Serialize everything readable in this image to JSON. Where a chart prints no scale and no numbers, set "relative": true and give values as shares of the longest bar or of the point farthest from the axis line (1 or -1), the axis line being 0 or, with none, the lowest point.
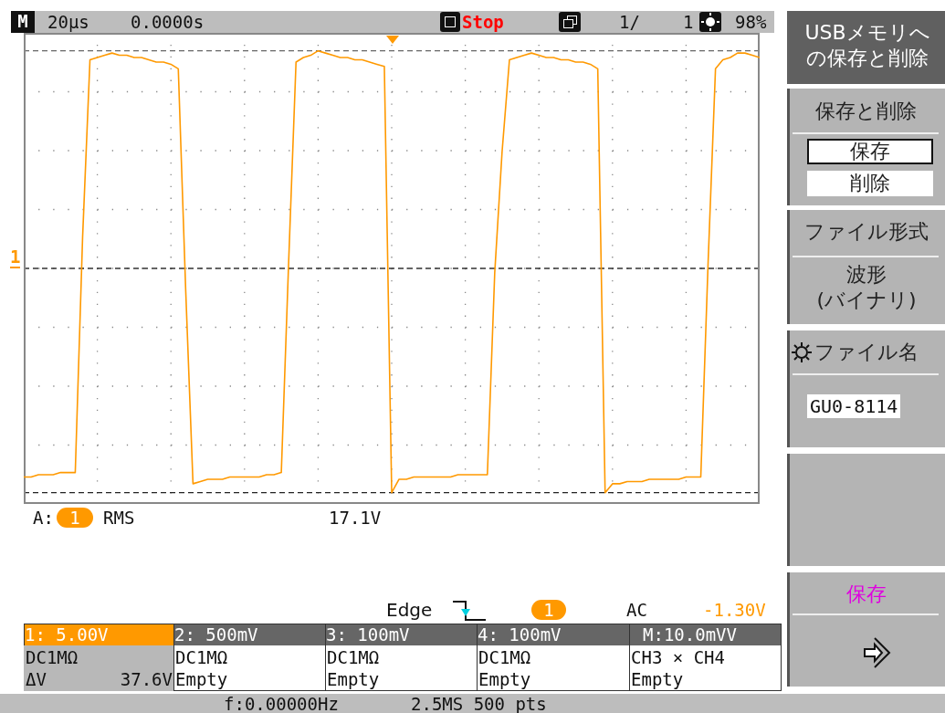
{
  "chart_data": {
    "type": "line",
    "relative": true,
    "grid": true,
    "legend": false,
    "marker": "none",
    "line_style": "solid",
    "categories": [
      null,
      null,
      null,
      null,
      null,
      null,
      null,
      null,
      null,
      null,
      null,
      null,
      null,
      null,
      null,
      null,
      null,
      null,
      null,
      null,
      null,
      null,
      null,
      null,
      null,
      null,
      null,
      null,
      null,
      null,
      null,
      null,
      null,
      null,
      null,
      null,
      null,
      null,
      null,
      null,
      null,
      null,
      null,
      null,
      null,
      null,
      null,
      null,
      null,
      null,
      null,
      null,
      null,
      null,
      null,
      null,
      null,
      null,
      null,
      null,
      null,
      null,
      null,
      null,
      null,
      null,
      null,
      null,
      null,
      null,
      null,
      null,
      null,
      null,
      null,
      null,
      null,
      null,
      null,
      null,
      null,
      null,
      null,
      null,
      null,
      null,
      null,
      null,
      null,
      null,
      null,
      null,
      null,
      null,
      null,
      null,
      null,
      null,
      null,
      null,
      null
    ],
    "series": [
      {
        "color": "#ff9900",
        "values": [
          -0.93,
          -0.93,
          -0.92,
          -0.92,
          -0.92,
          -0.91,
          -0.91,
          -0.91,
          0.14,
          0.93,
          0.94,
          0.95,
          0.96,
          0.95,
          0.95,
          0.94,
          0.94,
          0.93,
          0.92,
          0.92,
          0.91,
          0.89,
          -0.09,
          -0.96,
          -0.95,
          -0.94,
          -0.94,
          -0.94,
          -0.93,
          -0.93,
          -0.93,
          -0.93,
          -0.93,
          -0.92,
          -0.92,
          -0.91,
          0.03,
          0.92,
          0.94,
          0.95,
          0.97,
          0.96,
          0.95,
          0.94,
          0.94,
          0.93,
          0.93,
          0.92,
          0.91,
          0.9,
          -1.0,
          -0.94,
          -0.94,
          -0.93,
          -0.93,
          -0.93,
          -0.93,
          -0.93,
          -0.93,
          -0.92,
          -0.92,
          -0.92,
          -0.92,
          -0.92,
          -0.02,
          0.52,
          0.93,
          0.94,
          0.95,
          0.96,
          0.95,
          0.94,
          0.94,
          0.93,
          0.93,
          0.92,
          0.92,
          0.91,
          0.89,
          -1.0,
          -0.96,
          -0.96,
          -0.95,
          -0.95,
          -0.95,
          -0.94,
          -0.94,
          -0.94,
          -0.94,
          -0.94,
          -0.93,
          -0.93,
          -0.93,
          0.03,
          0.89,
          0.93,
          0.94,
          0.96,
          0.96,
          0.95,
          0.94
        ]
      }
    ],
    "ref_lines": [
      {
        "axis": "y",
        "value": 0.97,
        "line_style": "dashed",
        "color": "#666666"
      },
      {
        "axis": "y",
        "value": -1.0,
        "line_style": "dashed",
        "color": "#222222"
      },
      {
        "axis": "y",
        "value": 0,
        "line_style": "dashed",
        "color": "#333333"
      }
    ],
    "annotations": [
      "M",
      "20µs",
      "0.0000s",
      "Stop",
      "1/",
      "1",
      "98%",
      "USBメモリへの保存と削除",
      "保存と削除",
      "保存",
      "削除",
      "ファイル形式",
      "波形(バイナリ)",
      "ファイル名",
      "GU0-8114",
      "保存",
      "A:",
      "1",
      "RMS",
      "17.1V",
      "Edge",
      "1",
      "AC",
      "-1.30V",
      "1: 5.00V",
      "2: 500mV",
      "3: 100mV",
      "4: 100mV",
      "M:10.0mVV",
      "DC1MΩ",
      "ΔV",
      "37.6V",
      "DC1MΩ",
      "Empty",
      "DC1MΩ",
      "Empty",
      "DC1MΩ",
      "Empty",
      "CH3 × CH4",
      "Empty",
      "f:0.00000Hz",
      "2.5MS 500 pts",
      "1"
    ]
  }
}
